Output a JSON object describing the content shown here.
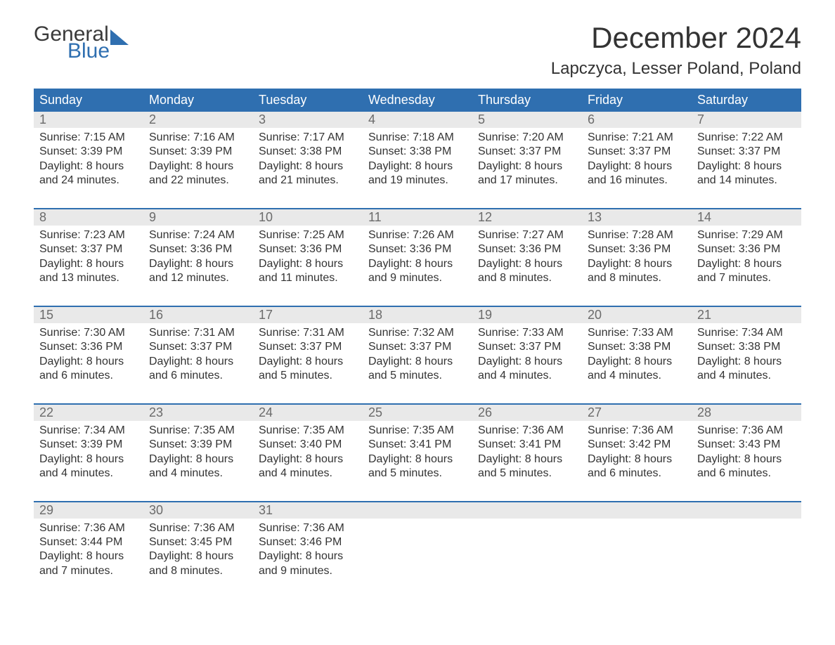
{
  "logo": {
    "top": "General",
    "bottom": "Blue"
  },
  "title": "December 2024",
  "location": "Lapczyca, Lesser Poland, Poland",
  "colors": {
    "header_bg": "#2f6fb0",
    "header_text": "#ffffff",
    "daynum_bg": "#e9e9e9",
    "daynum_text": "#6b6b6b",
    "body_text": "#333333",
    "week_border": "#2f6fb0"
  },
  "weekdays": [
    "Sunday",
    "Monday",
    "Tuesday",
    "Wednesday",
    "Thursday",
    "Friday",
    "Saturday"
  ],
  "weeks": [
    {
      "days": [
        {
          "num": "1",
          "sunrise": "Sunrise: 7:15 AM",
          "sunset": "Sunset: 3:39 PM",
          "day1": "Daylight: 8 hours",
          "day2": "and 24 minutes."
        },
        {
          "num": "2",
          "sunrise": "Sunrise: 7:16 AM",
          "sunset": "Sunset: 3:39 PM",
          "day1": "Daylight: 8 hours",
          "day2": "and 22 minutes."
        },
        {
          "num": "3",
          "sunrise": "Sunrise: 7:17 AM",
          "sunset": "Sunset: 3:38 PM",
          "day1": "Daylight: 8 hours",
          "day2": "and 21 minutes."
        },
        {
          "num": "4",
          "sunrise": "Sunrise: 7:18 AM",
          "sunset": "Sunset: 3:38 PM",
          "day1": "Daylight: 8 hours",
          "day2": "and 19 minutes."
        },
        {
          "num": "5",
          "sunrise": "Sunrise: 7:20 AM",
          "sunset": "Sunset: 3:37 PM",
          "day1": "Daylight: 8 hours",
          "day2": "and 17 minutes."
        },
        {
          "num": "6",
          "sunrise": "Sunrise: 7:21 AM",
          "sunset": "Sunset: 3:37 PM",
          "day1": "Daylight: 8 hours",
          "day2": "and 16 minutes."
        },
        {
          "num": "7",
          "sunrise": "Sunrise: 7:22 AM",
          "sunset": "Sunset: 3:37 PM",
          "day1": "Daylight: 8 hours",
          "day2": "and 14 minutes."
        }
      ]
    },
    {
      "days": [
        {
          "num": "8",
          "sunrise": "Sunrise: 7:23 AM",
          "sunset": "Sunset: 3:37 PM",
          "day1": "Daylight: 8 hours",
          "day2": "and 13 minutes."
        },
        {
          "num": "9",
          "sunrise": "Sunrise: 7:24 AM",
          "sunset": "Sunset: 3:36 PM",
          "day1": "Daylight: 8 hours",
          "day2": "and 12 minutes."
        },
        {
          "num": "10",
          "sunrise": "Sunrise: 7:25 AM",
          "sunset": "Sunset: 3:36 PM",
          "day1": "Daylight: 8 hours",
          "day2": "and 11 minutes."
        },
        {
          "num": "11",
          "sunrise": "Sunrise: 7:26 AM",
          "sunset": "Sunset: 3:36 PM",
          "day1": "Daylight: 8 hours",
          "day2": "and 9 minutes."
        },
        {
          "num": "12",
          "sunrise": "Sunrise: 7:27 AM",
          "sunset": "Sunset: 3:36 PM",
          "day1": "Daylight: 8 hours",
          "day2": "and 8 minutes."
        },
        {
          "num": "13",
          "sunrise": "Sunrise: 7:28 AM",
          "sunset": "Sunset: 3:36 PM",
          "day1": "Daylight: 8 hours",
          "day2": "and 8 minutes."
        },
        {
          "num": "14",
          "sunrise": "Sunrise: 7:29 AM",
          "sunset": "Sunset: 3:36 PM",
          "day1": "Daylight: 8 hours",
          "day2": "and 7 minutes."
        }
      ]
    },
    {
      "days": [
        {
          "num": "15",
          "sunrise": "Sunrise: 7:30 AM",
          "sunset": "Sunset: 3:36 PM",
          "day1": "Daylight: 8 hours",
          "day2": "and 6 minutes."
        },
        {
          "num": "16",
          "sunrise": "Sunrise: 7:31 AM",
          "sunset": "Sunset: 3:37 PM",
          "day1": "Daylight: 8 hours",
          "day2": "and 6 minutes."
        },
        {
          "num": "17",
          "sunrise": "Sunrise: 7:31 AM",
          "sunset": "Sunset: 3:37 PM",
          "day1": "Daylight: 8 hours",
          "day2": "and 5 minutes."
        },
        {
          "num": "18",
          "sunrise": "Sunrise: 7:32 AM",
          "sunset": "Sunset: 3:37 PM",
          "day1": "Daylight: 8 hours",
          "day2": "and 5 minutes."
        },
        {
          "num": "19",
          "sunrise": "Sunrise: 7:33 AM",
          "sunset": "Sunset: 3:37 PM",
          "day1": "Daylight: 8 hours",
          "day2": "and 4 minutes."
        },
        {
          "num": "20",
          "sunrise": "Sunrise: 7:33 AM",
          "sunset": "Sunset: 3:38 PM",
          "day1": "Daylight: 8 hours",
          "day2": "and 4 minutes."
        },
        {
          "num": "21",
          "sunrise": "Sunrise: 7:34 AM",
          "sunset": "Sunset: 3:38 PM",
          "day1": "Daylight: 8 hours",
          "day2": "and 4 minutes."
        }
      ]
    },
    {
      "days": [
        {
          "num": "22",
          "sunrise": "Sunrise: 7:34 AM",
          "sunset": "Sunset: 3:39 PM",
          "day1": "Daylight: 8 hours",
          "day2": "and 4 minutes."
        },
        {
          "num": "23",
          "sunrise": "Sunrise: 7:35 AM",
          "sunset": "Sunset: 3:39 PM",
          "day1": "Daylight: 8 hours",
          "day2": "and 4 minutes."
        },
        {
          "num": "24",
          "sunrise": "Sunrise: 7:35 AM",
          "sunset": "Sunset: 3:40 PM",
          "day1": "Daylight: 8 hours",
          "day2": "and 4 minutes."
        },
        {
          "num": "25",
          "sunrise": "Sunrise: 7:35 AM",
          "sunset": "Sunset: 3:41 PM",
          "day1": "Daylight: 8 hours",
          "day2": "and 5 minutes."
        },
        {
          "num": "26",
          "sunrise": "Sunrise: 7:36 AM",
          "sunset": "Sunset: 3:41 PM",
          "day1": "Daylight: 8 hours",
          "day2": "and 5 minutes."
        },
        {
          "num": "27",
          "sunrise": "Sunrise: 7:36 AM",
          "sunset": "Sunset: 3:42 PM",
          "day1": "Daylight: 8 hours",
          "day2": "and 6 minutes."
        },
        {
          "num": "28",
          "sunrise": "Sunrise: 7:36 AM",
          "sunset": "Sunset: 3:43 PM",
          "day1": "Daylight: 8 hours",
          "day2": "and 6 minutes."
        }
      ]
    },
    {
      "days": [
        {
          "num": "29",
          "sunrise": "Sunrise: 7:36 AM",
          "sunset": "Sunset: 3:44 PM",
          "day1": "Daylight: 8 hours",
          "day2": "and 7 minutes."
        },
        {
          "num": "30",
          "sunrise": "Sunrise: 7:36 AM",
          "sunset": "Sunset: 3:45 PM",
          "day1": "Daylight: 8 hours",
          "day2": "and 8 minutes."
        },
        {
          "num": "31",
          "sunrise": "Sunrise: 7:36 AM",
          "sunset": "Sunset: 3:46 PM",
          "day1": "Daylight: 8 hours",
          "day2": "and 9 minutes."
        },
        {
          "num": "",
          "sunrise": "",
          "sunset": "",
          "day1": "",
          "day2": ""
        },
        {
          "num": "",
          "sunrise": "",
          "sunset": "",
          "day1": "",
          "day2": ""
        },
        {
          "num": "",
          "sunrise": "",
          "sunset": "",
          "day1": "",
          "day2": ""
        },
        {
          "num": "",
          "sunrise": "",
          "sunset": "",
          "day1": "",
          "day2": ""
        }
      ]
    }
  ]
}
